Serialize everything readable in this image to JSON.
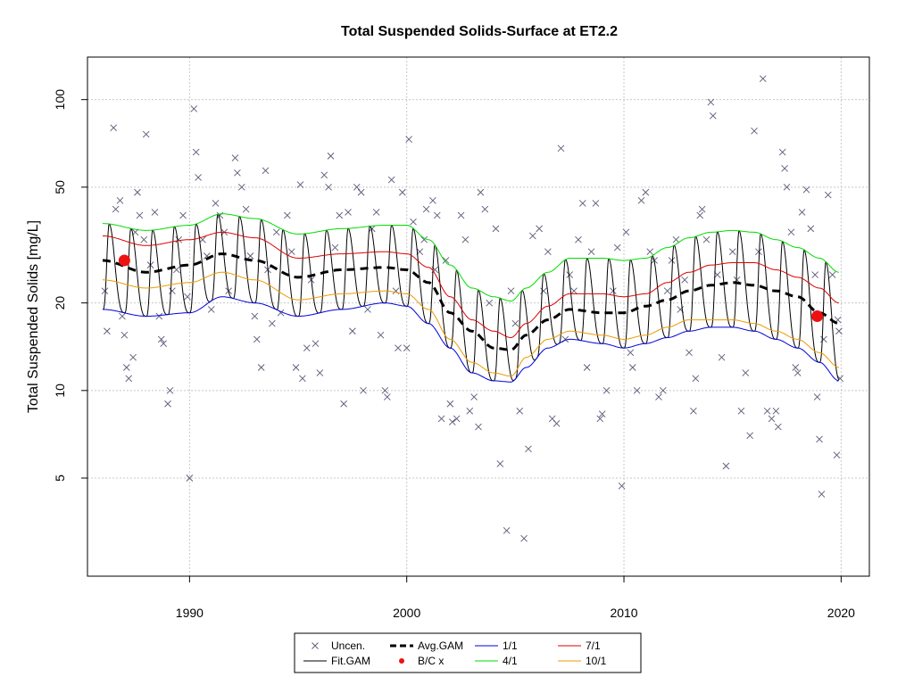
{
  "chart_data": {
    "type": "line",
    "title": "Total Suspended Solids-Surface at ET2.2",
    "xlabel": "",
    "ylabel": "Total Suspended Solids [mg/L]",
    "xlim": [
      1985.3,
      2021.3
    ],
    "ylim": [
      2.3,
      140
    ],
    "y_scale": "log",
    "grid": true,
    "x_ticks": [
      1990,
      2000,
      2010,
      2020
    ],
    "y_ticks": [
      5,
      10,
      20,
      50,
      100
    ],
    "legend_position": "bottom",
    "legend": [
      {
        "label": "Uncen.",
        "type": "x-marker",
        "color": "#5a5a78"
      },
      {
        "label": "Fit.GAM",
        "type": "line",
        "color": "#000000"
      },
      {
        "label": "Avg.GAM",
        "type": "dashed-line",
        "color": "#000000"
      },
      {
        "label": "B/C x",
        "type": "dot",
        "color": "#ee1111"
      },
      {
        "label": "1/1",
        "type": "line",
        "color": "#0000dd"
      },
      {
        "label": "4/1",
        "type": "line",
        "color": "#00dd00"
      },
      {
        "label": "7/1",
        "type": "line",
        "color": "#dd0000"
      },
      {
        "label": "10/1",
        "type": "line",
        "color": "#ee9900"
      }
    ],
    "series_knots": {
      "x": [
        1986,
        1988,
        1990,
        1991.5,
        1993,
        1995,
        1997,
        1999,
        2000,
        2001,
        2002,
        2003,
        2004,
        2004.8,
        2005.5,
        2006.5,
        2007.5,
        2009,
        2010,
        2011,
        2012,
        2013,
        2014,
        2015,
        2016,
        2017,
        2018,
        2019,
        2019.9
      ],
      "Avg.GAM": [
        28,
        25.5,
        27,
        29.5,
        28,
        24.5,
        26,
        26.5,
        26,
        23.5,
        18.5,
        16,
        14,
        13.8,
        15.5,
        17.5,
        19,
        18.5,
        18.5,
        19.5,
        20.5,
        22,
        23,
        23.5,
        23,
        22,
        21,
        18.5,
        17
      ],
      "1/1": [
        19,
        18,
        18.5,
        21,
        20,
        18,
        19,
        20,
        19.5,
        17,
        14,
        11.5,
        10.8,
        10.7,
        12,
        14,
        15,
        14.5,
        14,
        14.5,
        15.2,
        16,
        16.5,
        16.5,
        16,
        15,
        14,
        12.5,
        10.8
      ],
      "4/1": [
        37.5,
        35.5,
        37,
        40.5,
        39,
        34.5,
        36,
        37,
        37,
        33,
        27,
        22.5,
        21,
        20.3,
        22.5,
        25.5,
        28.5,
        28.5,
        28,
        28.5,
        31,
        33.5,
        35,
        35.5,
        35,
        33,
        31,
        28.5,
        25.5
      ],
      "7/1": [
        34,
        31.5,
        33,
        35,
        33.5,
        28.5,
        29.5,
        30,
        29.5,
        26.5,
        21,
        17.5,
        16,
        15.2,
        17,
        19.5,
        21.5,
        21.5,
        21,
        21.5,
        23.5,
        25.5,
        27,
        27.5,
        27.5,
        26,
        24.5,
        22.5,
        20
      ],
      "10/1": [
        24,
        22.5,
        23.5,
        25.5,
        24,
        20.5,
        21.5,
        22,
        21.5,
        19,
        15,
        12.5,
        11.5,
        11.2,
        13,
        15,
        16,
        15.5,
        15,
        15.5,
        16.5,
        17.5,
        17.5,
        17.5,
        17,
        16,
        15,
        13.5,
        12
      ]
    },
    "fit_gam": {
      "x_start": 1986,
      "x_end": 2019.9,
      "lower_envelope": "1/1",
      "upper_envelope": "4/1",
      "period_years": 1
    },
    "bc_points": [
      {
        "x": 1987,
        "y": 28
      },
      {
        "x": 2018.9,
        "y": 18
      }
    ],
    "uncensored_points": [
      [
        1986.1,
        22
      ],
      [
        1986.2,
        16
      ],
      [
        1986.5,
        80
      ],
      [
        1986.6,
        42
      ],
      [
        1986.8,
        45
      ],
      [
        1986.9,
        18
      ],
      [
        1987.0,
        15.5
      ],
      [
        1987.1,
        12
      ],
      [
        1987.2,
        11
      ],
      [
        1987.4,
        13
      ],
      [
        1987.5,
        35
      ],
      [
        1987.6,
        48
      ],
      [
        1987.7,
        40
      ],
      [
        1987.9,
        33
      ],
      [
        1988.0,
        76
      ],
      [
        1988.2,
        27
      ],
      [
        1988.4,
        41
      ],
      [
        1988.6,
        18
      ],
      [
        1988.7,
        15
      ],
      [
        1988.8,
        14.5
      ],
      [
        1989.0,
        9
      ],
      [
        1989.1,
        10
      ],
      [
        1989.2,
        22
      ],
      [
        1989.4,
        26
      ],
      [
        1989.5,
        33
      ],
      [
        1989.7,
        40
      ],
      [
        1989.9,
        21
      ],
      [
        1990.0,
        5
      ],
      [
        1990.2,
        93
      ],
      [
        1990.3,
        66
      ],
      [
        1990.4,
        54
      ],
      [
        1990.6,
        33
      ],
      [
        1990.8,
        29
      ],
      [
        1991.0,
        19
      ],
      [
        1991.2,
        44
      ],
      [
        1991.4,
        40
      ],
      [
        1991.6,
        35
      ],
      [
        1991.8,
        22
      ],
      [
        1992.1,
        63
      ],
      [
        1992.2,
        56
      ],
      [
        1992.4,
        50
      ],
      [
        1992.6,
        42
      ],
      [
        1992.8,
        29
      ],
      [
        1993.0,
        18
      ],
      [
        1993.1,
        15
      ],
      [
        1993.3,
        12
      ],
      [
        1993.5,
        57
      ],
      [
        1993.6,
        26
      ],
      [
        1993.8,
        17
      ],
      [
        1994.0,
        35
      ],
      [
        1994.2,
        18.5
      ],
      [
        1994.5,
        40
      ],
      [
        1994.7,
        30
      ],
      [
        1994.9,
        12
      ],
      [
        1995.1,
        51
      ],
      [
        1995.2,
        11
      ],
      [
        1995.4,
        14
      ],
      [
        1995.6,
        24
      ],
      [
        1995.8,
        14.5
      ],
      [
        1996.0,
        11.5
      ],
      [
        1996.2,
        55
      ],
      [
        1996.4,
        50
      ],
      [
        1996.5,
        64
      ],
      [
        1996.7,
        31
      ],
      [
        1996.9,
        40
      ],
      [
        1997.1,
        9
      ],
      [
        1997.3,
        41
      ],
      [
        1997.5,
        16
      ],
      [
        1997.7,
        50
      ],
      [
        1997.9,
        48
      ],
      [
        1998.0,
        10
      ],
      [
        1998.2,
        19
      ],
      [
        1998.4,
        36
      ],
      [
        1998.6,
        41
      ],
      [
        1998.8,
        15.5
      ],
      [
        1999.0,
        10
      ],
      [
        1999.1,
        9.5
      ],
      [
        1999.3,
        53
      ],
      [
        1999.5,
        22
      ],
      [
        1999.6,
        14
      ],
      [
        1999.8,
        48
      ],
      [
        2000.0,
        14
      ],
      [
        2000.1,
        73
      ],
      [
        2000.3,
        38
      ],
      [
        2000.6,
        30
      ],
      [
        2000.8,
        33
      ],
      [
        2000.9,
        42
      ],
      [
        2001.2,
        45
      ],
      [
        2001.3,
        26
      ],
      [
        2001.4,
        40
      ],
      [
        2001.6,
        8
      ],
      [
        2001.8,
        28
      ],
      [
        2002.0,
        9
      ],
      [
        2002.1,
        7.8
      ],
      [
        2002.3,
        8
      ],
      [
        2002.5,
        40
      ],
      [
        2002.7,
        33
      ],
      [
        2002.9,
        8.5
      ],
      [
        2003.1,
        9.5
      ],
      [
        2003.3,
        7.5
      ],
      [
        2003.4,
        48
      ],
      [
        2003.6,
        42
      ],
      [
        2003.8,
        20
      ],
      [
        2004.1,
        36
      ],
      [
        2004.3,
        5.6
      ],
      [
        2004.6,
        3.3
      ],
      [
        2004.8,
        22
      ],
      [
        2005.0,
        17
      ],
      [
        2005.2,
        8.5
      ],
      [
        2005.4,
        3.1
      ],
      [
        2005.6,
        6.3
      ],
      [
        2005.8,
        34
      ],
      [
        2006.1,
        36
      ],
      [
        2006.3,
        22
      ],
      [
        2006.5,
        30
      ],
      [
        2006.7,
        8
      ],
      [
        2006.9,
        7.7
      ],
      [
        2007.1,
        68
      ],
      [
        2007.3,
        15
      ],
      [
        2007.5,
        25
      ],
      [
        2007.7,
        22
      ],
      [
        2007.9,
        33
      ],
      [
        2008.1,
        44
      ],
      [
        2008.3,
        12
      ],
      [
        2008.5,
        30
      ],
      [
        2008.7,
        44
      ],
      [
        2008.9,
        8
      ],
      [
        2009.0,
        8.3
      ],
      [
        2009.2,
        10
      ],
      [
        2009.5,
        22
      ],
      [
        2009.7,
        31
      ],
      [
        2009.9,
        4.7
      ],
      [
        2010.1,
        35
      ],
      [
        2010.3,
        13.5
      ],
      [
        2010.4,
        12
      ],
      [
        2010.6,
        10
      ],
      [
        2010.8,
        45
      ],
      [
        2011.0,
        48
      ],
      [
        2011.2,
        30
      ],
      [
        2011.4,
        28
      ],
      [
        2011.6,
        9.5
      ],
      [
        2011.8,
        10
      ],
      [
        2012.0,
        22
      ],
      [
        2012.2,
        28
      ],
      [
        2012.4,
        33
      ],
      [
        2012.6,
        19
      ],
      [
        2012.8,
        24
      ],
      [
        2013.0,
        13.5
      ],
      [
        2013.2,
        8.5
      ],
      [
        2013.3,
        11
      ],
      [
        2013.5,
        40
      ],
      [
        2013.6,
        42
      ],
      [
        2013.8,
        33
      ],
      [
        2014.0,
        98
      ],
      [
        2014.1,
        88
      ],
      [
        2014.3,
        25
      ],
      [
        2014.5,
        13
      ],
      [
        2014.7,
        5.5
      ],
      [
        2015.0,
        30
      ],
      [
        2015.2,
        24
      ],
      [
        2015.4,
        8.5
      ],
      [
        2015.6,
        11.5
      ],
      [
        2015.8,
        7
      ],
      [
        2016.0,
        78
      ],
      [
        2016.2,
        30
      ],
      [
        2016.4,
        118
      ],
      [
        2016.6,
        8.5
      ],
      [
        2016.8,
        8
      ],
      [
        2017.0,
        8.5
      ],
      [
        2017.1,
        7.5
      ],
      [
        2017.3,
        66
      ],
      [
        2017.4,
        58
      ],
      [
        2017.5,
        50
      ],
      [
        2017.7,
        35
      ],
      [
        2017.9,
        12
      ],
      [
        2018.0,
        11.5
      ],
      [
        2018.2,
        41
      ],
      [
        2018.4,
        49
      ],
      [
        2018.6,
        36
      ],
      [
        2018.8,
        25
      ],
      [
        2018.9,
        9.5
      ],
      [
        2019.0,
        6.8
      ],
      [
        2019.1,
        4.4
      ],
      [
        2019.2,
        15
      ],
      [
        2019.4,
        47
      ],
      [
        2019.6,
        25
      ],
      [
        2019.8,
        6
      ],
      [
        2019.9,
        16
      ],
      [
        2019.85,
        17.5
      ],
      [
        2019.95,
        11
      ]
    ]
  }
}
